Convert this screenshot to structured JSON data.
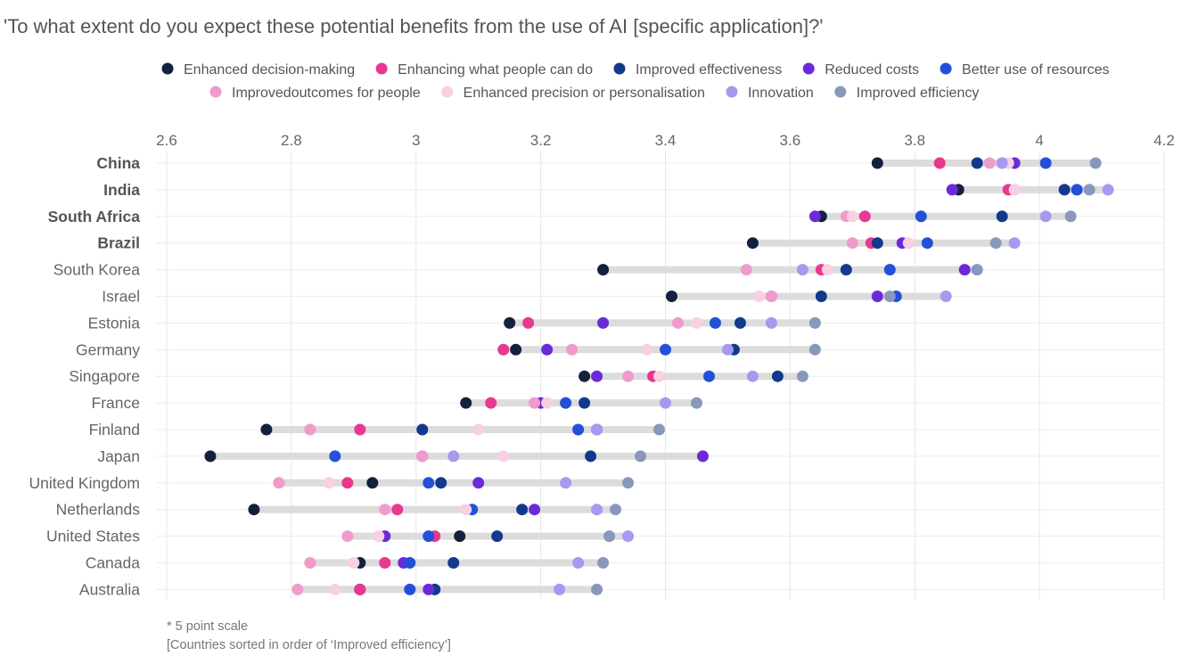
{
  "chart_data": {
    "type": "scatter",
    "title": "'To what extent do you expect these potential benefits from the use of AI [specific application]?'",
    "xlabel": "",
    "ylabel": "",
    "xlim": [
      2.6,
      4.2
    ],
    "x_ticks": [
      "2.6",
      "2.8",
      "3",
      "3.2",
      "3.4",
      "3.6",
      "3.8",
      "4",
      "4.2"
    ],
    "x_tick_values": [
      2.6,
      2.8,
      3.0,
      3.2,
      3.4,
      3.6,
      3.8,
      4.0,
      4.2
    ],
    "grid": true,
    "legend_position": "top",
    "categories": [
      "China",
      "India",
      "South Africa",
      "Brazil",
      "South Korea",
      "Israel",
      "Estonia",
      "Germany",
      "Singapore",
      "France",
      "Finland",
      "Japan",
      "United Kingdom",
      "Netherlands",
      "United States",
      "Canada",
      "Australia"
    ],
    "bold_categories": [
      "China",
      "India",
      "South Africa",
      "Brazil"
    ],
    "series": [
      {
        "name": "Enhanced decision-making",
        "color": "#14213d",
        "values": [
          3.74,
          3.87,
          3.65,
          3.54,
          3.3,
          3.41,
          3.15,
          3.16,
          3.27,
          3.08,
          2.76,
          2.67,
          2.93,
          2.74,
          3.07,
          2.91,
          2.91
        ]
      },
      {
        "name": "Enhancing what people can do",
        "color": "#e8388f",
        "values": [
          3.84,
          3.95,
          3.72,
          3.73,
          3.65,
          3.57,
          3.18,
          3.14,
          3.38,
          3.12,
          2.91,
          3.01,
          2.89,
          2.97,
          3.03,
          2.95,
          2.91
        ]
      },
      {
        "name": "Improved effectiveness",
        "color": "#123a8c",
        "values": [
          3.9,
          4.04,
          3.94,
          3.74,
          3.69,
          3.65,
          3.52,
          3.51,
          3.58,
          3.27,
          3.01,
          3.28,
          3.04,
          3.17,
          3.13,
          3.06,
          3.03
        ]
      },
      {
        "name": "Reduced costs",
        "color": "#6a2ad8",
        "values": [
          3.96,
          3.86,
          3.64,
          3.78,
          3.88,
          3.74,
          3.3,
          3.21,
          3.29,
          3.2,
          3.29,
          3.46,
          3.1,
          3.19,
          2.95,
          2.98,
          3.02
        ]
      },
      {
        "name": "Better use of resources",
        "color": "#2350d8",
        "values": [
          4.01,
          4.06,
          3.81,
          3.82,
          3.76,
          3.77,
          3.48,
          3.4,
          3.47,
          3.24,
          3.26,
          2.87,
          3.02,
          3.09,
          3.02,
          2.99,
          2.99
        ]
      },
      {
        "name": "Improved outcomes for people",
        "color": "#ef9bcc",
        "values": [
          3.92,
          3.96,
          3.69,
          3.7,
          3.53,
          3.57,
          3.42,
          3.25,
          3.34,
          3.19,
          2.83,
          3.01,
          2.78,
          2.95,
          2.89,
          2.83,
          2.81
        ]
      },
      {
        "name": "Enhanced precision or personalisation",
        "color": "#f9cfe4",
        "values": [
          3.95,
          3.96,
          3.7,
          3.79,
          3.66,
          3.55,
          3.45,
          3.37,
          3.39,
          3.21,
          3.1,
          3.14,
          2.86,
          3.08,
          2.94,
          2.9,
          2.87
        ]
      },
      {
        "name": "Innovation",
        "color": "#a898f0",
        "values": [
          3.94,
          4.11,
          4.01,
          3.96,
          3.62,
          3.85,
          3.57,
          3.5,
          3.54,
          3.4,
          3.29,
          3.06,
          3.24,
          3.29,
          3.34,
          3.26,
          3.23
        ]
      },
      {
        "name": "Improved efficiency",
        "color": "#8898bc",
        "values": [
          4.09,
          4.08,
          4.05,
          3.93,
          3.9,
          3.76,
          3.64,
          3.64,
          3.62,
          3.45,
          3.39,
          3.36,
          3.34,
          3.32,
          3.31,
          3.3,
          3.29
        ]
      }
    ],
    "legend_rows": [
      [
        "Enhanced decision-making",
        "Enhancing what people can do",
        "Improved effectiveness",
        "Reduced costs",
        "Better use of resources"
      ],
      [
        "Improvedoutcomes for people",
        "Enhanced precision or personalisation",
        "Innovation",
        "Improved efficiency"
      ]
    ],
    "notes": [
      "* 5 point scale",
      "[Countries sorted in order of ‘Improved efficiency’]"
    ]
  }
}
